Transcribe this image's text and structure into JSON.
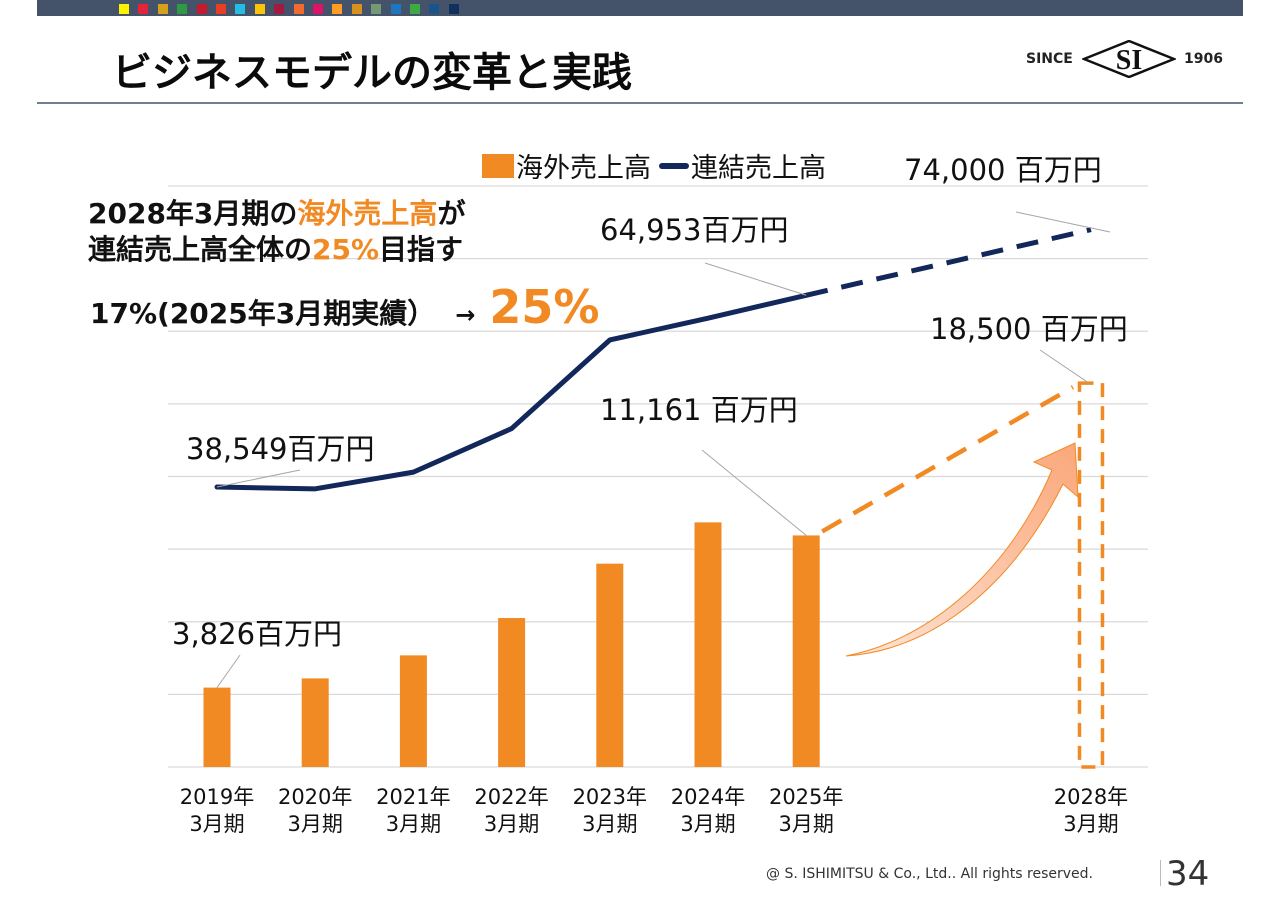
{
  "header": {
    "title": "ビジネスモデルの変革と実践",
    "sdg_colors": [
      "#FFF200",
      "#E5243B",
      "#D4A21A",
      "#2E9A41",
      "#C5192D",
      "#E83E23",
      "#26BDE2",
      "#FCC30B",
      "#A21942",
      "#F26A2D",
      "#DD1367",
      "#FD9D24",
      "#D8901F",
      "#739A72",
      "#1E76C0",
      "#3EAA43",
      "#19558A",
      "#11305E"
    ],
    "logo": {
      "since": "SINCE",
      "mark": "SI",
      "year": "1906"
    }
  },
  "callout": {
    "line1_prefix": "2028年3月期の",
    "line1_highlight": "海外売上高",
    "line1_suffix": "が",
    "line2_prefix": "連結売上高全体の",
    "line2_highlight": "25%",
    "line2_suffix": "目指す",
    "line3_text": "17%(2025年3月期実績）",
    "line3_arrow": "→",
    "line3_target": "25%"
  },
  "colors": {
    "bar": "#F28A24",
    "line": "#12275A",
    "grid": "#D9D9D9",
    "leader": "#A6A6A6",
    "arrow_fill": "#FBB58A"
  },
  "chart_data": {
    "type": "bar+line",
    "title": "",
    "legend": {
      "position": "top",
      "entries": [
        "海外売上高",
        "連結売上高"
      ]
    },
    "categories": [
      "2019年\n3月期",
      "2020年\n3月期",
      "2021年\n3月期",
      "2022年\n3月期",
      "2023年\n3月期",
      "2024年\n3月期",
      "2025年\n3月期",
      "2028年\n3月期"
    ],
    "category_lines": [
      [
        "2019年",
        "3月期"
      ],
      [
        "2020年",
        "3月期"
      ],
      [
        "2021年",
        "3月期"
      ],
      [
        "2022年",
        "3月期"
      ],
      [
        "2023年",
        "3月期"
      ],
      [
        "2024年",
        "3月期"
      ],
      [
        "2025年",
        "3月期"
      ],
      [
        "2028年",
        "3月期"
      ]
    ],
    "category_slots": [
      0,
      1,
      2,
      3,
      4,
      5,
      6,
      8.9
    ],
    "series": [
      {
        "name": "海外売上高",
        "type": "bar",
        "axis": "secondary",
        "values": [
          3826,
          4270,
          5380,
          7180,
          9800,
          11790,
          11161,
          18500
        ],
        "projected": [
          false,
          false,
          false,
          false,
          false,
          false,
          false,
          true
        ]
      },
      {
        "name": "連結売上高",
        "type": "line",
        "axis": "primary",
        "values": [
          38549,
          38300,
          40600,
          46600,
          58800,
          61800,
          64953,
          74000
        ],
        "projected": [
          false,
          false,
          false,
          false,
          false,
          false,
          false,
          true
        ]
      }
    ],
    "primary_ylim": [
      0,
      80000
    ],
    "secondary_ylim": [
      0,
      28000
    ],
    "gridlines": 8,
    "grid": true,
    "annotations": [
      {
        "text": "38,549百万円",
        "series": "連結売上高",
        "index": 0
      },
      {
        "text": "64,953百万円",
        "series": "連結売上高",
        "index": 6
      },
      {
        "text": "74,000 百万円",
        "series": "連結売上高",
        "index": 7
      },
      {
        "text": "3,826百万円",
        "series": "海外売上高",
        "index": 0
      },
      {
        "text": "11,161 百万円",
        "series": "海外売上高",
        "index": 6
      },
      {
        "text": "18,500 百万円",
        "series": "海外売上高",
        "index": 7
      }
    ],
    "unit": "百万円"
  },
  "footer": {
    "copyright": "@ S. ISHIMITSU & Co., Ltd.. All rights reserved.",
    "page_number": "34"
  }
}
